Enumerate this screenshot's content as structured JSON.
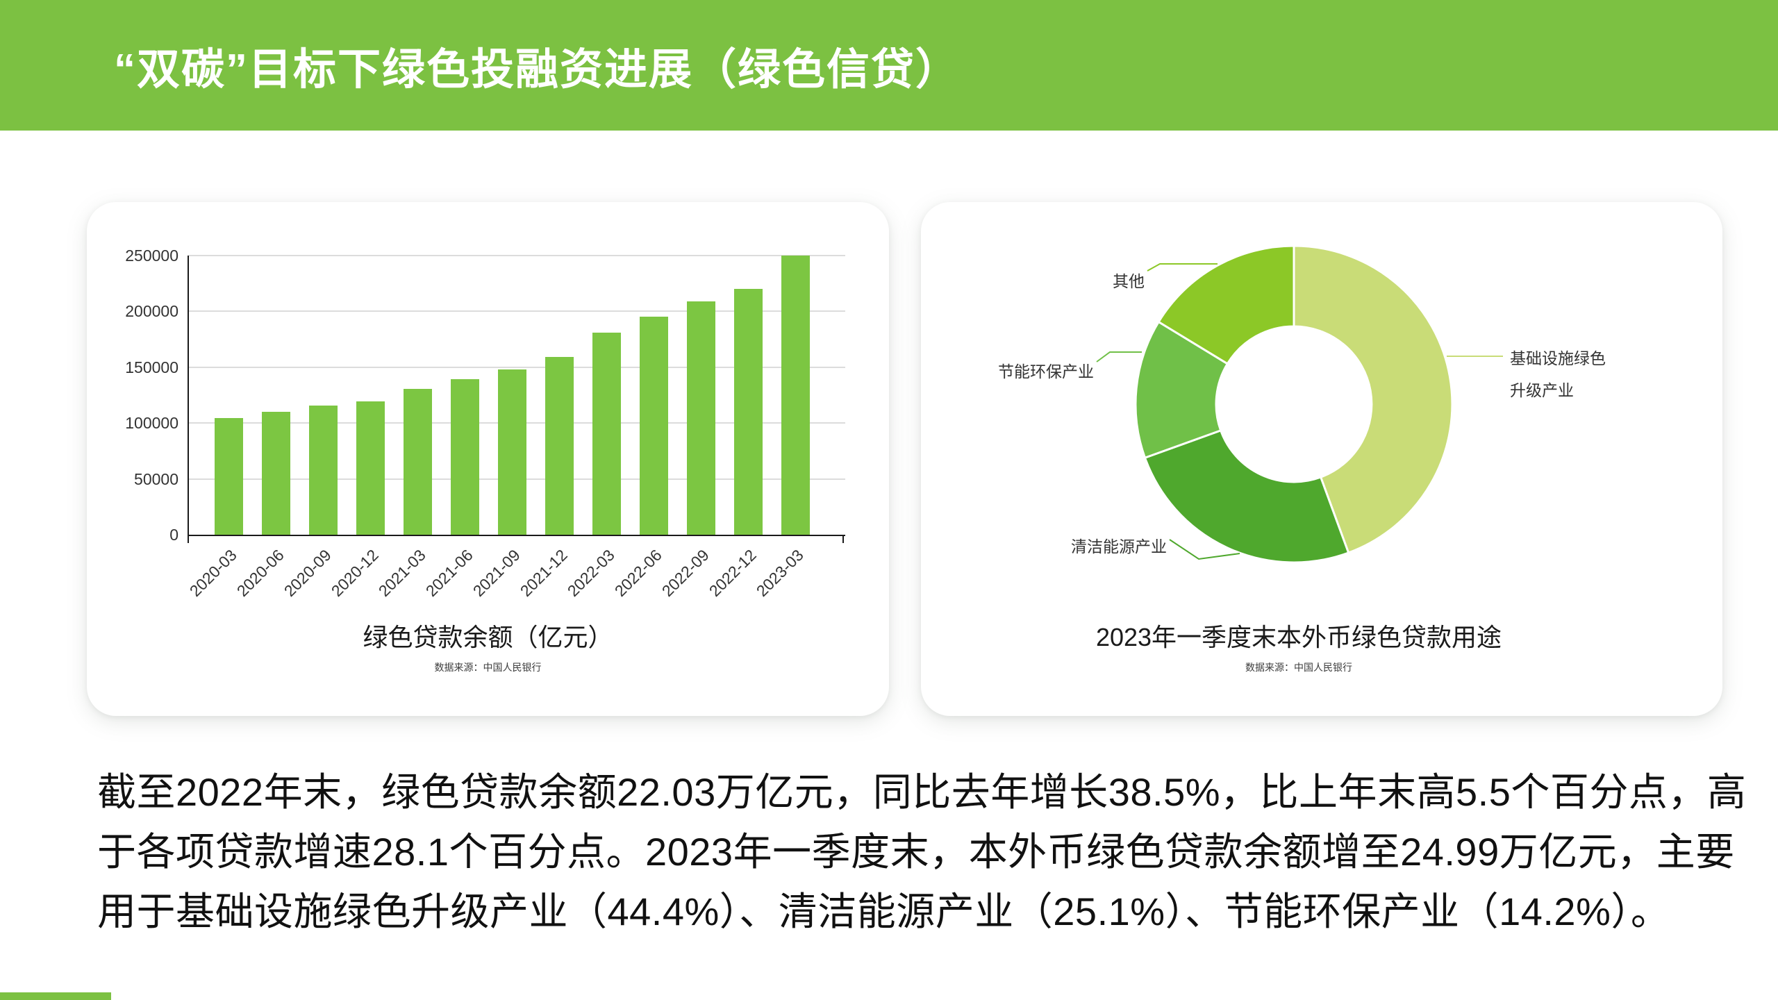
{
  "header": {
    "title": "“双碳”目标下绿色投融资进展（绿色信贷）"
  },
  "theme": {
    "header_green": "#7cc142",
    "bar_green": "#7cc642",
    "grid_color": "#dcdcdc",
    "axis_color": "#1a1a1a"
  },
  "chart_data": [
    {
      "type": "bar",
      "title": "绿色贷款余额（亿元）",
      "source": "数据来源：中国人民银行",
      "categories": [
        "2020-03",
        "2020-06",
        "2020-09",
        "2020-12",
        "2021-03",
        "2021-06",
        "2021-09",
        "2021-12",
        "2022-03",
        "2022-06",
        "2022-09",
        "2022-12",
        "2023-03"
      ],
      "values": [
        104600,
        110100,
        115500,
        119500,
        130300,
        139200,
        147800,
        159000,
        180700,
        195500,
        209000,
        220300,
        249900
      ],
      "bar_color": "#7cc642",
      "ylim": [
        0,
        250000
      ],
      "yticks": [
        0,
        50000,
        100000,
        150000,
        200000,
        250000
      ],
      "grid": true,
      "legend": "none"
    },
    {
      "type": "pie",
      "subtype": "donut",
      "title": "2023年一季度末本外币绿色贷款用途",
      "source": "数据来源：中国人民银行",
      "start_angle_deg": 0,
      "direction": "clockwise",
      "inner_radius_ratio": 0.49,
      "slices": [
        {
          "label": "基础设施绿色升级产业",
          "label_lines": [
            "基础设施绿色",
            "升级产业"
          ],
          "value": 44.4,
          "color": "#c9dc77"
        },
        {
          "label": "清洁能源产业",
          "value": 25.1,
          "color": "#4fa82d"
        },
        {
          "label": "节能环保产业",
          "value": 14.2,
          "color": "#70c048"
        },
        {
          "label": "其他",
          "value": 16.3,
          "color": "#8cc827"
        }
      ]
    }
  ],
  "paragraph": {
    "lines": [
      "截至2022年末，绿色贷款余额22.03万亿元，同比去年增长38.5%，比上年末高5.5个百分点，高",
      "于各项贷款增速28.1个百分点。2023年一季度末，本外币绿色贷款余额增至24.99万亿元，主要",
      "用于基础设施绿色升级产业（44.4%）、清洁能源产业（25.1%）、节能环保产业（14.2%）。"
    ]
  }
}
